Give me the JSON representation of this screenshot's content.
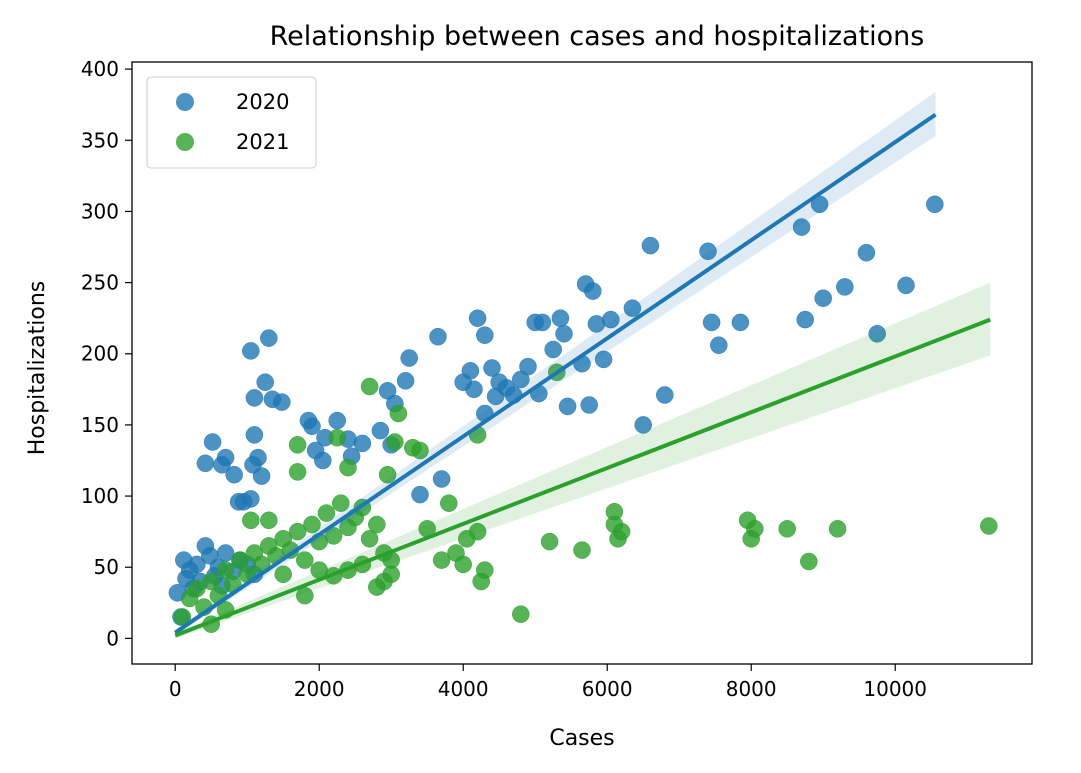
{
  "chart_data": {
    "type": "scatter",
    "title": "Relationship between cases and hospitalizations",
    "xlabel": "Cases",
    "ylabel": "Hospitalizations",
    "xlim": [
      -600,
      11900
    ],
    "ylim": [
      -18,
      405
    ],
    "xticks": [
      0,
      2000,
      4000,
      6000,
      8000,
      10000
    ],
    "yticks": [
      0,
      50,
      100,
      150,
      200,
      250,
      300,
      350,
      400
    ],
    "grid": false,
    "legend": {
      "placement": "top-left"
    },
    "series": [
      {
        "name": "2020",
        "color": "#1f77b4",
        "regression": {
          "x0": 0,
          "y0": 4,
          "x1": 10560,
          "y1": 368,
          "ci_low_end": 353,
          "ci_high_end": 384
        },
        "points": [
          [
            30,
            32
          ],
          [
            80,
            15
          ],
          [
            120,
            55
          ],
          [
            150,
            42
          ],
          [
            200,
            48
          ],
          [
            250,
            35
          ],
          [
            300,
            52
          ],
          [
            350,
            40
          ],
          [
            420,
            65
          ],
          [
            480,
            58
          ],
          [
            550,
            44
          ],
          [
            600,
            50
          ],
          [
            650,
            37
          ],
          [
            700,
            60
          ],
          [
            800,
            47
          ],
          [
            900,
            55
          ],
          [
            1000,
            52
          ],
          [
            1100,
            45
          ],
          [
            420,
            123
          ],
          [
            520,
            138
          ],
          [
            650,
            122
          ],
          [
            700,
            127
          ],
          [
            820,
            115
          ],
          [
            880,
            96
          ],
          [
            950,
            96
          ],
          [
            1050,
            98
          ],
          [
            1100,
            143
          ],
          [
            1150,
            127
          ],
          [
            1200,
            114
          ],
          [
            1080,
            122
          ],
          [
            1050,
            202
          ],
          [
            1250,
            180
          ],
          [
            1300,
            211
          ],
          [
            1100,
            169
          ],
          [
            1350,
            168
          ],
          [
            1480,
            166
          ],
          [
            1900,
            149
          ],
          [
            1850,
            153
          ],
          [
            1950,
            132
          ],
          [
            2050,
            125
          ],
          [
            2080,
            141
          ],
          [
            2250,
            153
          ],
          [
            2400,
            140
          ],
          [
            2600,
            137
          ],
          [
            2450,
            128
          ],
          [
            2950,
            174
          ],
          [
            3050,
            165
          ],
          [
            3200,
            181
          ],
          [
            3250,
            197
          ],
          [
            2850,
            146
          ],
          [
            3000,
            136
          ],
          [
            3400,
            101
          ],
          [
            3650,
            212
          ],
          [
            3700,
            112
          ],
          [
            4000,
            180
          ],
          [
            4100,
            188
          ],
          [
            4200,
            225
          ],
          [
            4300,
            213
          ],
          [
            4150,
            175
          ],
          [
            4300,
            158
          ],
          [
            4400,
            190
          ],
          [
            4450,
            170
          ],
          [
            4500,
            180
          ],
          [
            4600,
            176
          ],
          [
            4700,
            171
          ],
          [
            4800,
            182
          ],
          [
            4900,
            191
          ],
          [
            5000,
            222
          ],
          [
            5100,
            222
          ],
          [
            5050,
            172
          ],
          [
            5250,
            203
          ],
          [
            5350,
            225
          ],
          [
            5400,
            214
          ],
          [
            5450,
            163
          ],
          [
            5650,
            193
          ],
          [
            5700,
            249
          ],
          [
            5750,
            164
          ],
          [
            5800,
            244
          ],
          [
            5850,
            221
          ],
          [
            5950,
            196
          ],
          [
            6050,
            224
          ],
          [
            6350,
            232
          ],
          [
            6500,
            150
          ],
          [
            6600,
            276
          ],
          [
            6800,
            171
          ],
          [
            7400,
            272
          ],
          [
            7450,
            222
          ],
          [
            7550,
            206
          ],
          [
            7850,
            222
          ],
          [
            8700,
            289
          ],
          [
            8750,
            224
          ],
          [
            8950,
            305
          ],
          [
            9000,
            239
          ],
          [
            9300,
            247
          ],
          [
            9600,
            271
          ],
          [
            9750,
            214
          ],
          [
            10150,
            248
          ],
          [
            10550,
            305
          ]
        ]
      },
      {
        "name": "2021",
        "color": "#2ca02c",
        "regression": {
          "x0": 0,
          "y0": 2,
          "x1": 11320,
          "y1": 224,
          "ci_low_end": 199,
          "ci_high_end": 250
        },
        "points": [
          [
            100,
            15
          ],
          [
            200,
            28
          ],
          [
            300,
            35
          ],
          [
            400,
            22
          ],
          [
            500,
            40
          ],
          [
            600,
            30
          ],
          [
            700,
            48
          ],
          [
            800,
            38
          ],
          [
            900,
            55
          ],
          [
            1000,
            45
          ],
          [
            1100,
            60
          ],
          [
            1200,
            52
          ],
          [
            1300,
            65
          ],
          [
            1400,
            58
          ],
          [
            1500,
            70
          ],
          [
            1600,
            62
          ],
          [
            1700,
            75
          ],
          [
            1800,
            55
          ],
          [
            1900,
            80
          ],
          [
            2000,
            68
          ],
          [
            2100,
            88
          ],
          [
            2200,
            72
          ],
          [
            2300,
            95
          ],
          [
            2400,
            78
          ],
          [
            2500,
            85
          ],
          [
            2600,
            92
          ],
          [
            2700,
            70
          ],
          [
            2800,
            80
          ],
          [
            2900,
            60
          ],
          [
            3000,
            55
          ],
          [
            1050,
            83
          ],
          [
            1300,
            83
          ],
          [
            1700,
            117
          ],
          [
            1700,
            136
          ],
          [
            2250,
            141
          ],
          [
            2400,
            120
          ],
          [
            2700,
            177
          ],
          [
            3100,
            158
          ],
          [
            3050,
            138
          ],
          [
            3300,
            134
          ],
          [
            3400,
            132
          ],
          [
            2950,
            115
          ],
          [
            3500,
            77
          ],
          [
            3700,
            55
          ],
          [
            3800,
            95
          ],
          [
            3900,
            60
          ],
          [
            4000,
            52
          ],
          [
            4050,
            70
          ],
          [
            4200,
            143
          ],
          [
            4200,
            75
          ],
          [
            4250,
            40
          ],
          [
            4300,
            48
          ],
          [
            4800,
            17
          ],
          [
            5200,
            68
          ],
          [
            5300,
            187
          ],
          [
            5650,
            62
          ],
          [
            6100,
            89
          ],
          [
            6100,
            80
          ],
          [
            6150,
            70
          ],
          [
            6200,
            75
          ],
          [
            7950,
            83
          ],
          [
            8000,
            70
          ],
          [
            8050,
            77
          ],
          [
            8500,
            77
          ],
          [
            8800,
            54
          ],
          [
            9200,
            77
          ],
          [
            11300,
            79
          ],
          [
            2000,
            48
          ],
          [
            2200,
            44
          ],
          [
            2400,
            48
          ],
          [
            2600,
            52
          ],
          [
            2800,
            36
          ],
          [
            2900,
            40
          ],
          [
            3000,
            45
          ],
          [
            1500,
            45
          ],
          [
            1800,
            30
          ],
          [
            700,
            20
          ],
          [
            500,
            10
          ]
        ]
      }
    ]
  }
}
